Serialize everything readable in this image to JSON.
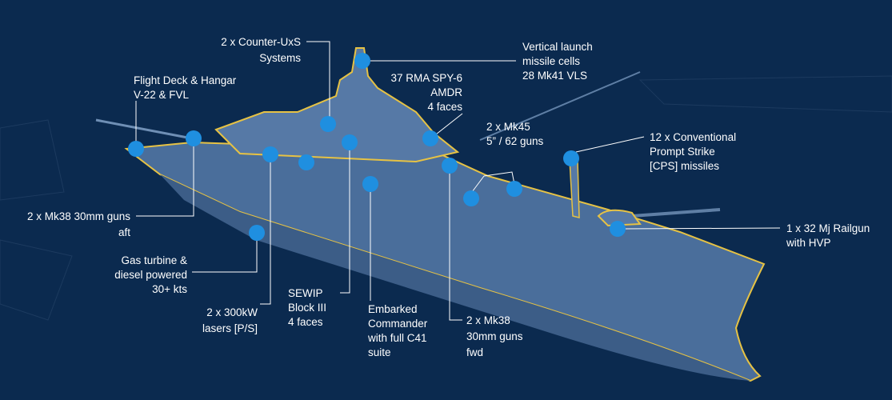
{
  "callouts": [
    {
      "lines": [
        "2 x Counter-UxS",
        "Systems"
      ]
    },
    {
      "lines": [
        "Flight Deck & Hangar",
        "V-22 & FVL"
      ]
    },
    {
      "lines": [
        "37 RMA SPY-6",
        "AMDR",
        "4 faces"
      ]
    },
    {
      "lines": [
        "Vertical launch",
        "missile cells",
        "28 Mk41 VLS"
      ]
    },
    {
      "lines": [
        "2 x Mk45",
        "5” / 62 guns"
      ]
    },
    {
      "lines": [
        "12 x Conventional",
        "Prompt Strike",
        "[CPS] missiles"
      ]
    },
    {
      "lines": [
        "1 x 32 Mj Railgun",
        "with HVP"
      ]
    },
    {
      "lines": [
        "2 x Mk38 30mm guns",
        "aft"
      ]
    },
    {
      "lines": [
        "Gas turbine &",
        "diesel powered",
        "30+ kts"
      ]
    },
    {
      "lines": [
        "2 x 300kW",
        "lasers [P/S]"
      ]
    },
    {
      "lines": [
        "SEWIP",
        "Block III",
        "4 faces"
      ]
    },
    {
      "lines": [
        "Embarked",
        "Commander",
        "with full C41",
        "suite"
      ]
    },
    {
      "lines": [
        "2 x Mk38",
        "30mm guns",
        "fwd"
      ]
    }
  ]
}
